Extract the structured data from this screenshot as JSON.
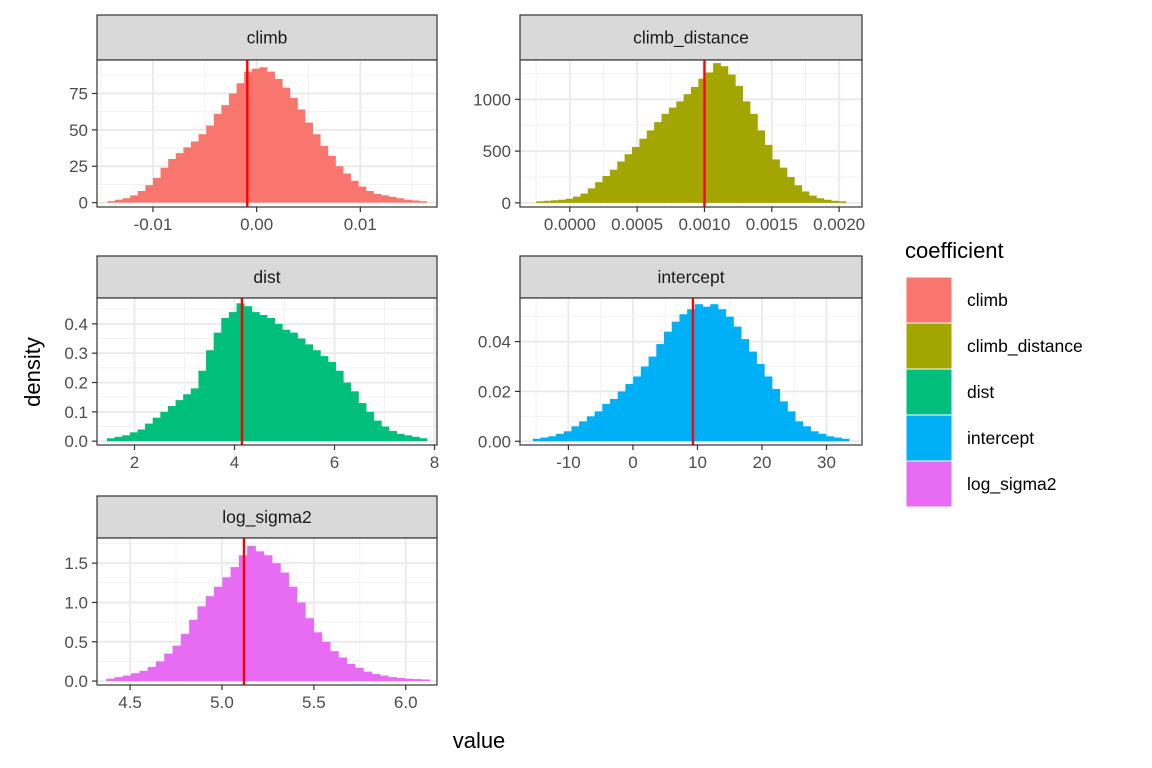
{
  "chart_data": {
    "type": "histogram-facets",
    "xlabel": "value",
    "ylabel": "density",
    "reference_line_color": "#ff0000",
    "grid": true,
    "legend": {
      "title": "coefficient",
      "placement": "right",
      "entries": [
        {
          "label": "climb",
          "color": "#f8766d"
        },
        {
          "label": "climb_distance",
          "color": "#a3a500"
        },
        {
          "label": "dist",
          "color": "#00bf7d"
        },
        {
          "label": "intercept",
          "color": "#00b0f6"
        },
        {
          "label": "log_sigma2",
          "color": "#e76bf3"
        }
      ]
    },
    "facets": [
      {
        "title": "climb",
        "color": "#f8766d",
        "xlim": [
          -0.0154,
          0.0174
        ],
        "ylim": [
          -3,
          98
        ],
        "xticks": [
          -0.01,
          0.0,
          0.01
        ],
        "xtick_labels": [
          "-0.01",
          "0.00",
          "0.01"
        ],
        "yticks": [
          0,
          25,
          50,
          75
        ],
        "ytick_labels": [
          "0",
          "25",
          "50",
          "75"
        ],
        "reference_x": -0.0009,
        "bins_start": -0.0144,
        "bins_end": 0.0164,
        "densities": [
          1,
          2,
          3,
          5,
          8,
          12,
          17,
          24,
          30,
          34,
          38,
          42,
          47,
          53,
          61,
          67,
          75,
          82,
          90,
          92,
          93,
          90,
          85,
          79,
          72,
          64,
          55,
          47,
          39,
          32,
          25,
          20,
          15,
          11,
          8,
          6,
          5,
          4,
          3,
          2,
          1.5,
          1
        ]
      },
      {
        "title": "climb_distance",
        "color": "#a3a500",
        "xlim": [
          -0.00037,
          0.00217
        ],
        "ylim": [
          -40,
          1380
        ],
        "xticks": [
          0.0,
          0.0005,
          0.001,
          0.0015,
          0.002
        ],
        "xtick_labels": [
          "0.0000",
          "0.0005",
          "0.0010",
          "0.0015",
          "0.0020"
        ],
        "yticks": [
          0,
          500,
          1000
        ],
        "ytick_labels": [
          "0",
          "500",
          "1000"
        ],
        "reference_x": 0.001,
        "bins_start": -0.00025,
        "bins_end": 0.00205,
        "densities": [
          15,
          20,
          25,
          30,
          40,
          60,
          90,
          140,
          200,
          260,
          320,
          400,
          470,
          540,
          620,
          700,
          780,
          860,
          920,
          980,
          1050,
          1120,
          1200,
          1260,
          1350,
          1320,
          1240,
          1130,
          980,
          860,
          700,
          560,
          420,
          340,
          250,
          170,
          110,
          70,
          45,
          30,
          20,
          15
        ]
      },
      {
        "title": "dist",
        "color": "#00bf7d",
        "xlim": [
          1.25,
          8.05
        ],
        "ylim": [
          -0.013,
          0.488
        ],
        "xticks": [
          2,
          4,
          6,
          8
        ],
        "xtick_labels": [
          "2",
          "4",
          "6",
          "8"
        ],
        "yticks": [
          0.0,
          0.1,
          0.2,
          0.3,
          0.4
        ],
        "ytick_labels": [
          "0.0",
          "0.1",
          "0.2",
          "0.3",
          "0.4"
        ],
        "reference_x": 4.15,
        "bins_start": 1.45,
        "bins_end": 7.85,
        "densities": [
          0.01,
          0.015,
          0.02,
          0.03,
          0.04,
          0.06,
          0.08,
          0.1,
          0.12,
          0.14,
          0.16,
          0.18,
          0.24,
          0.31,
          0.37,
          0.42,
          0.44,
          0.47,
          0.46,
          0.44,
          0.43,
          0.42,
          0.4,
          0.38,
          0.37,
          0.35,
          0.33,
          0.31,
          0.29,
          0.27,
          0.24,
          0.2,
          0.17,
          0.13,
          0.1,
          0.07,
          0.05,
          0.035,
          0.025,
          0.02,
          0.015,
          0.01
        ]
      },
      {
        "title": "intercept",
        "color": "#00b0f6",
        "xlim": [
          -17.5,
          35.5
        ],
        "ylim": [
          -0.0015,
          0.0575
        ],
        "xticks": [
          -10,
          0,
          10,
          20,
          30
        ],
        "xtick_labels": [
          "-10",
          "0",
          "10",
          "20",
          "30"
        ],
        "yticks": [
          0.0,
          0.02,
          0.04
        ],
        "ytick_labels": [
          "0.00",
          "0.02",
          "0.04"
        ],
        "reference_x": 9.3,
        "bins_start": -15.5,
        "bins_end": 33.5,
        "densities": [
          0.001,
          0.0015,
          0.002,
          0.003,
          0.004,
          0.006,
          0.008,
          0.01,
          0.012,
          0.015,
          0.017,
          0.02,
          0.023,
          0.026,
          0.03,
          0.034,
          0.039,
          0.044,
          0.048,
          0.051,
          0.053,
          0.055,
          0.054,
          0.055,
          0.053,
          0.05,
          0.046,
          0.041,
          0.036,
          0.031,
          0.026,
          0.021,
          0.016,
          0.012,
          0.008,
          0.006,
          0.004,
          0.003,
          0.002,
          0.0015,
          0.001
        ]
      },
      {
        "title": "log_sigma2",
        "color": "#e76bf3",
        "xlim": [
          4.32,
          6.17
        ],
        "ylim": [
          -0.05,
          1.82
        ],
        "xticks": [
          4.5,
          5.0,
          5.5,
          6.0
        ],
        "xtick_labels": [
          "4.5",
          "5.0",
          "5.5",
          "6.0"
        ],
        "yticks": [
          0.0,
          0.5,
          1.0,
          1.5
        ],
        "ytick_labels": [
          "0.0",
          "0.5",
          "1.0",
          "1.5"
        ],
        "reference_x": 5.12,
        "bins_start": 4.37,
        "bins_end": 6.13,
        "densities": [
          0.03,
          0.05,
          0.07,
          0.1,
          0.13,
          0.18,
          0.25,
          0.35,
          0.45,
          0.6,
          0.78,
          0.95,
          1.08,
          1.2,
          1.32,
          1.45,
          1.6,
          1.72,
          1.65,
          1.6,
          1.5,
          1.38,
          1.2,
          1.0,
          0.8,
          0.62,
          0.5,
          0.38,
          0.3,
          0.22,
          0.17,
          0.12,
          0.09,
          0.07,
          0.05,
          0.04,
          0.03,
          0.025,
          0.02
        ]
      }
    ]
  }
}
